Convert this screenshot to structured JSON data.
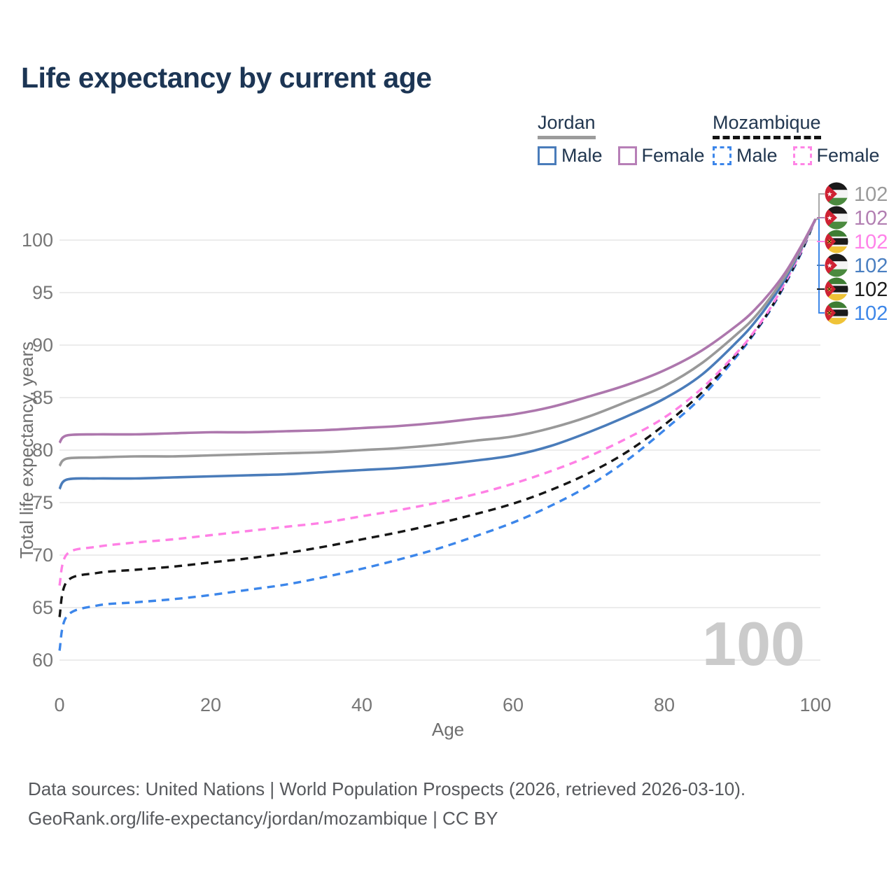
{
  "title": "Life expectancy by current age",
  "legend": {
    "groups": [
      {
        "name": "Jordan",
        "underline": {
          "color": "#9b9b9b",
          "dashed": false
        },
        "items": [
          {
            "label": "Male",
            "color": "#4a7cba",
            "dashed": false
          },
          {
            "label": "Female",
            "color": "#b77fb7",
            "dashed": false
          }
        ]
      },
      {
        "name": "Mozambique",
        "underline": {
          "color": "#141414",
          "dashed": true
        },
        "items": [
          {
            "label": "Male",
            "color": "#3c86ea",
            "dashed": true
          },
          {
            "label": "Female",
            "color": "#ff85e6",
            "dashed": true
          }
        ]
      }
    ]
  },
  "chart_data": {
    "type": "line",
    "title": "Life expectancy by current age",
    "xlabel": "Age",
    "ylabel": "Total life expectancy, years",
    "xlim": [
      0,
      100
    ],
    "ylim": [
      60,
      103
    ],
    "x_ticks": [
      0,
      20,
      40,
      60,
      80,
      100
    ],
    "y_ticks": [
      60,
      65,
      70,
      75,
      80,
      85,
      90,
      95,
      100
    ],
    "grid": "horizontal-only",
    "age_indicator": "100",
    "ages": [
      0,
      1,
      5,
      10,
      15,
      20,
      25,
      30,
      35,
      40,
      45,
      50,
      55,
      60,
      65,
      70,
      75,
      80,
      85,
      90,
      92,
      94,
      96,
      98,
      100
    ],
    "series": [
      {
        "name": "Mozambique Male",
        "country": "mozambique",
        "sex": "male",
        "color": "#3c86ea",
        "dashed": true,
        "values": [
          60.9,
          64.2,
          65.2,
          65.5,
          65.8,
          66.2,
          66.7,
          67.2,
          67.9,
          68.7,
          69.6,
          70.6,
          71.8,
          73.1,
          74.7,
          76.6,
          79.0,
          81.9,
          85.1,
          89.3,
          91.2,
          93.3,
          95.8,
          98.6,
          102
        ]
      },
      {
        "name": "Mozambique Total",
        "country": "mozambique",
        "sex": "all",
        "color": "#161616",
        "dashed": true,
        "values": [
          64.1,
          67.5,
          68.3,
          68.6,
          68.9,
          69.3,
          69.7,
          70.2,
          70.8,
          71.5,
          72.2,
          73.0,
          73.9,
          74.9,
          76.2,
          77.8,
          79.8,
          82.4,
          85.5,
          89.5,
          91.3,
          93.4,
          95.9,
          98.7,
          102
        ]
      },
      {
        "name": "Mozambique Female",
        "country": "mozambique",
        "sex": "female",
        "color": "#ff80e5",
        "dashed": true,
        "values": [
          67.1,
          70.1,
          70.8,
          71.2,
          71.5,
          71.9,
          72.3,
          72.7,
          73.1,
          73.7,
          74.3,
          75.0,
          75.8,
          76.8,
          78.0,
          79.4,
          81.1,
          83.1,
          85.9,
          89.6,
          91.4,
          93.5,
          96.0,
          98.8,
          102
        ]
      },
      {
        "name": "Jordan Male",
        "country": "jordan",
        "sex": "male",
        "color": "#4a7cba",
        "dashed": false,
        "values": [
          76.3,
          77.2,
          77.3,
          77.3,
          77.4,
          77.5,
          77.6,
          77.7,
          77.9,
          78.1,
          78.3,
          78.6,
          79.0,
          79.5,
          80.4,
          81.7,
          83.2,
          84.9,
          87.2,
          90.6,
          92.2,
          94.1,
          96.3,
          99.0,
          102
        ]
      },
      {
        "name": "Jordan Total",
        "country": "jordan",
        "sex": "all",
        "color": "#999999",
        "dashed": false,
        "values": [
          78.5,
          79.2,
          79.3,
          79.4,
          79.4,
          79.5,
          79.6,
          79.7,
          79.8,
          80.0,
          80.2,
          80.5,
          80.9,
          81.3,
          82.1,
          83.2,
          84.6,
          86.1,
          88.3,
          91.3,
          92.7,
          94.5,
          96.6,
          99.1,
          102
        ]
      },
      {
        "name": "Jordan Female",
        "country": "jordan",
        "sex": "female",
        "color": "#ad77ad",
        "dashed": false,
        "values": [
          80.7,
          81.4,
          81.5,
          81.5,
          81.6,
          81.7,
          81.7,
          81.8,
          81.9,
          82.1,
          82.3,
          82.6,
          83.0,
          83.4,
          84.1,
          85.1,
          86.2,
          87.6,
          89.5,
          92.1,
          93.4,
          95.0,
          96.9,
          99.3,
          102
        ]
      }
    ],
    "end_labels": [
      {
        "flag": "jordan",
        "value": "102",
        "color": "#9a9a9a"
      },
      {
        "flag": "jordan",
        "value": "102",
        "color": "#b27fb2"
      },
      {
        "flag": "mozambique",
        "value": "102",
        "color": "#ff82e9"
      },
      {
        "flag": "jordan",
        "value": "102",
        "color": "#4a7fc1"
      },
      {
        "flag": "mozambique",
        "value": "102",
        "color": "#1c1c1c"
      },
      {
        "flag": "mozambique",
        "value": "102",
        "color": "#3e87e8"
      }
    ]
  },
  "footer": {
    "line1": "Data sources: United Nations | World Population Prospects (2026, retrieved 2026-03-10).",
    "line2": "GeoRank.org/life-expectancy/jordan/mozambique | CC BY"
  }
}
